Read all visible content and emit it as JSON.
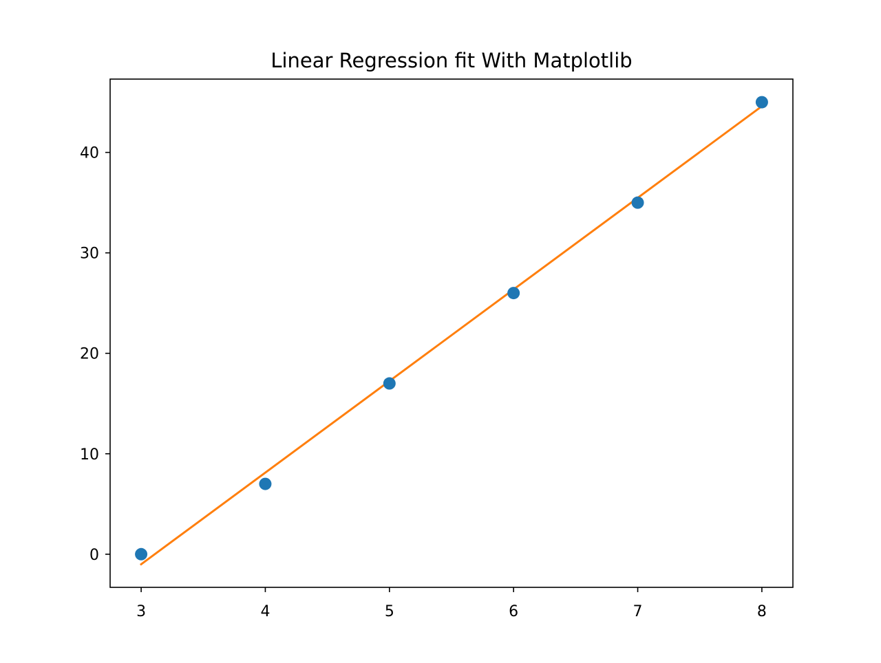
{
  "chart_data": {
    "type": "scatter",
    "title": "Linear Regression fit With Matplotlib",
    "xlabel": "",
    "ylabel": "",
    "xlim": [
      2.75,
      8.25
    ],
    "ylim": [
      -3.3,
      47.3
    ],
    "xticks": [
      3,
      4,
      5,
      6,
      7,
      8
    ],
    "yticks": [
      0,
      10,
      20,
      30,
      40
    ],
    "grid": false,
    "legend": "none",
    "series": [
      {
        "type": "scatter",
        "color": "#1f77b4",
        "x": [
          3,
          4,
          5,
          6,
          7,
          8
        ],
        "y": [
          0,
          7,
          17,
          26,
          35,
          45
        ]
      },
      {
        "type": "line",
        "color": "#ff7f0e",
        "x": [
          3,
          8
        ],
        "y": [
          -1.0,
          44.6
        ]
      }
    ]
  }
}
